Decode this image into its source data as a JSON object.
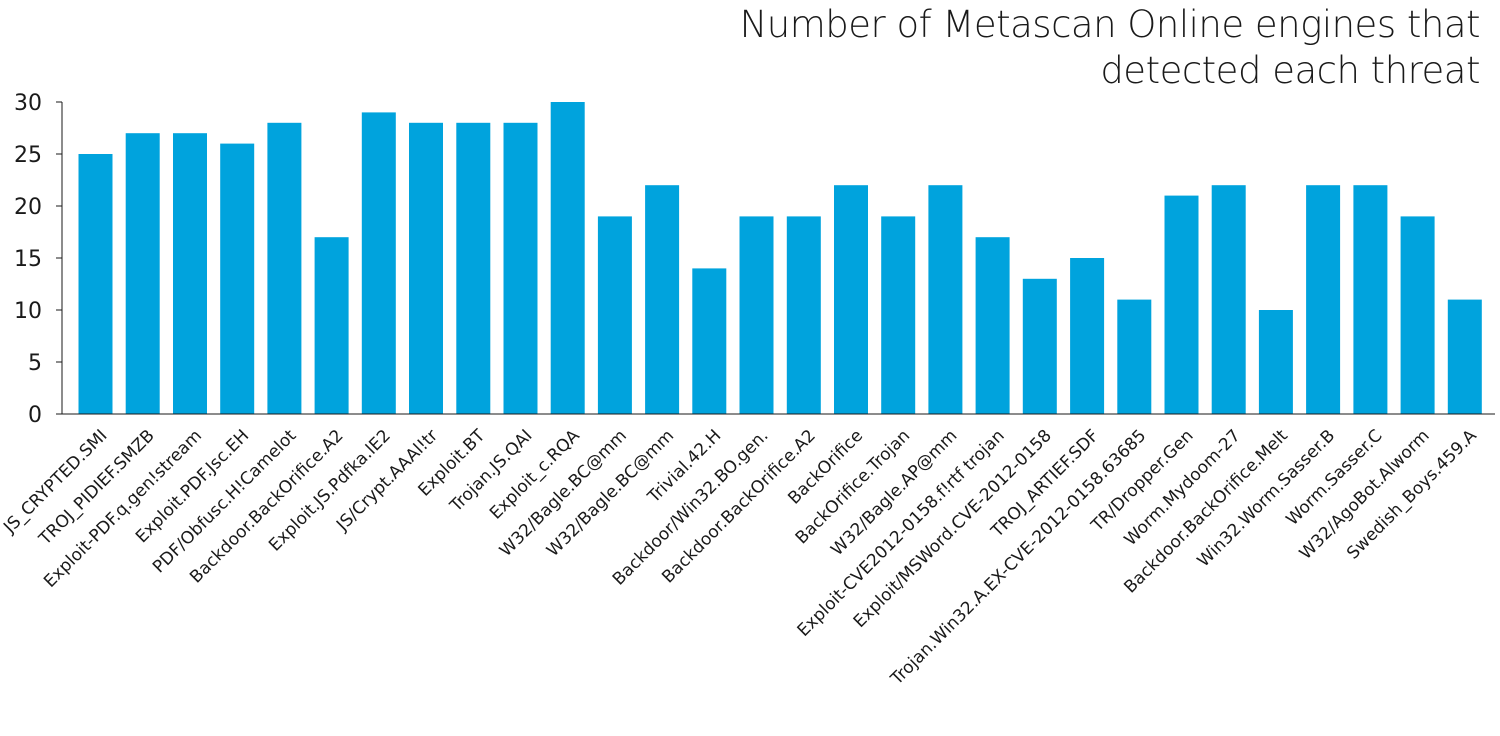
{
  "chart_data": {
    "type": "bar",
    "title": "Number of Metascan Online engines that detected each threat",
    "xlabel": "",
    "ylabel": "",
    "ylim": [
      0,
      30
    ],
    "yticks": [
      "0",
      "5",
      "10",
      "15",
      "20",
      "25",
      "30"
    ],
    "grid": false,
    "bar_color": "#00a3dd",
    "categories": [
      "JS_CRYPTED.SMI",
      "TROJ_PIDIEF.SMZB",
      "Exploit-PDF.q.gen!stream",
      "Exploit.PDF.Jsc.EH",
      "PDF/Obfusc.H!Camelot",
      "Backdoor.BackOrifice.A2",
      "Exploit.JS.Pdfka.lE2",
      "JS/Crypt.AAAl!tr",
      "Exploit.BT",
      "Trojan.JS.QAI",
      "Exploit_c.RQA",
      "W32/Bagle.BC@mm",
      "W32/Bagle.BC@mm",
      "Trivial.42.H",
      "Backdoor/Win32.BO.gen.",
      "Backdoor.BackOrifice.A2",
      "BackOrifice",
      "BackOrifice.Trojan",
      "W32/Bagle.AP@mm",
      "Exploit-CVE2012-0158.f!rtf trojan",
      "Exploit/MSWord.CVE-2012-0158",
      "TROJ_ARTIEF.SDF",
      "Trojan.Win32.A.EX-CVE-2012-0158.63685",
      "TR/Dropper.Gen",
      "Worm.Mydoom-27",
      "Backdoor.BackOrifice.Melt",
      "Win32.Worm.Sasser.B",
      "Worm.Sasser.C",
      "W32/AgoBot.Alworm",
      "Swedish_Boys.459.A"
    ],
    "values": [
      25,
      27,
      27,
      26,
      28,
      17,
      29,
      28,
      28,
      28,
      30,
      19,
      22,
      14,
      19,
      19,
      22,
      19,
      22,
      17,
      13,
      15,
      11,
      21,
      22,
      10,
      22,
      22,
      19,
      11
    ]
  }
}
